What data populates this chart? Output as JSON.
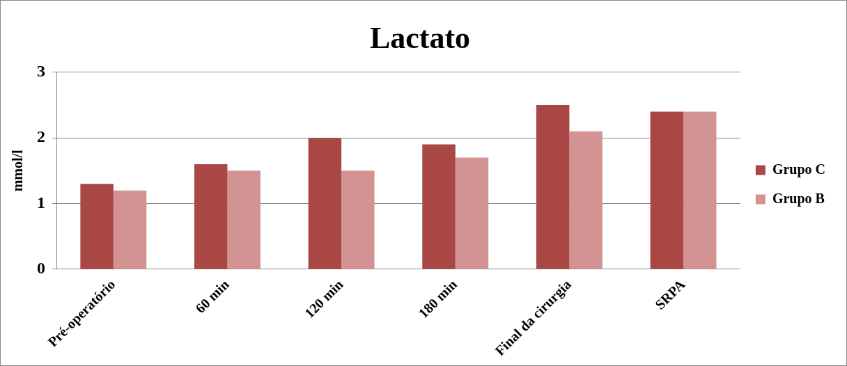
{
  "chart_data": {
    "type": "bar",
    "title": "Lactato",
    "ylabel": "mmol/l",
    "categories": [
      "Pré-operatório",
      "60 min",
      "120 min",
      "180 min",
      "Final da cirurgia",
      "SRPA"
    ],
    "series": [
      {
        "name": "Grupo C",
        "color": "#a94744",
        "values": [
          1.3,
          1.6,
          2.0,
          1.9,
          2.5,
          2.4
        ]
      },
      {
        "name": "Grupo B",
        "color": "#d39392",
        "values": [
          1.2,
          1.5,
          1.5,
          1.7,
          2.1,
          2.4
        ]
      }
    ],
    "ylim": [
      0,
      3
    ],
    "yticks": [
      0,
      1,
      2,
      3
    ],
    "grid": "y",
    "legend": "right"
  }
}
